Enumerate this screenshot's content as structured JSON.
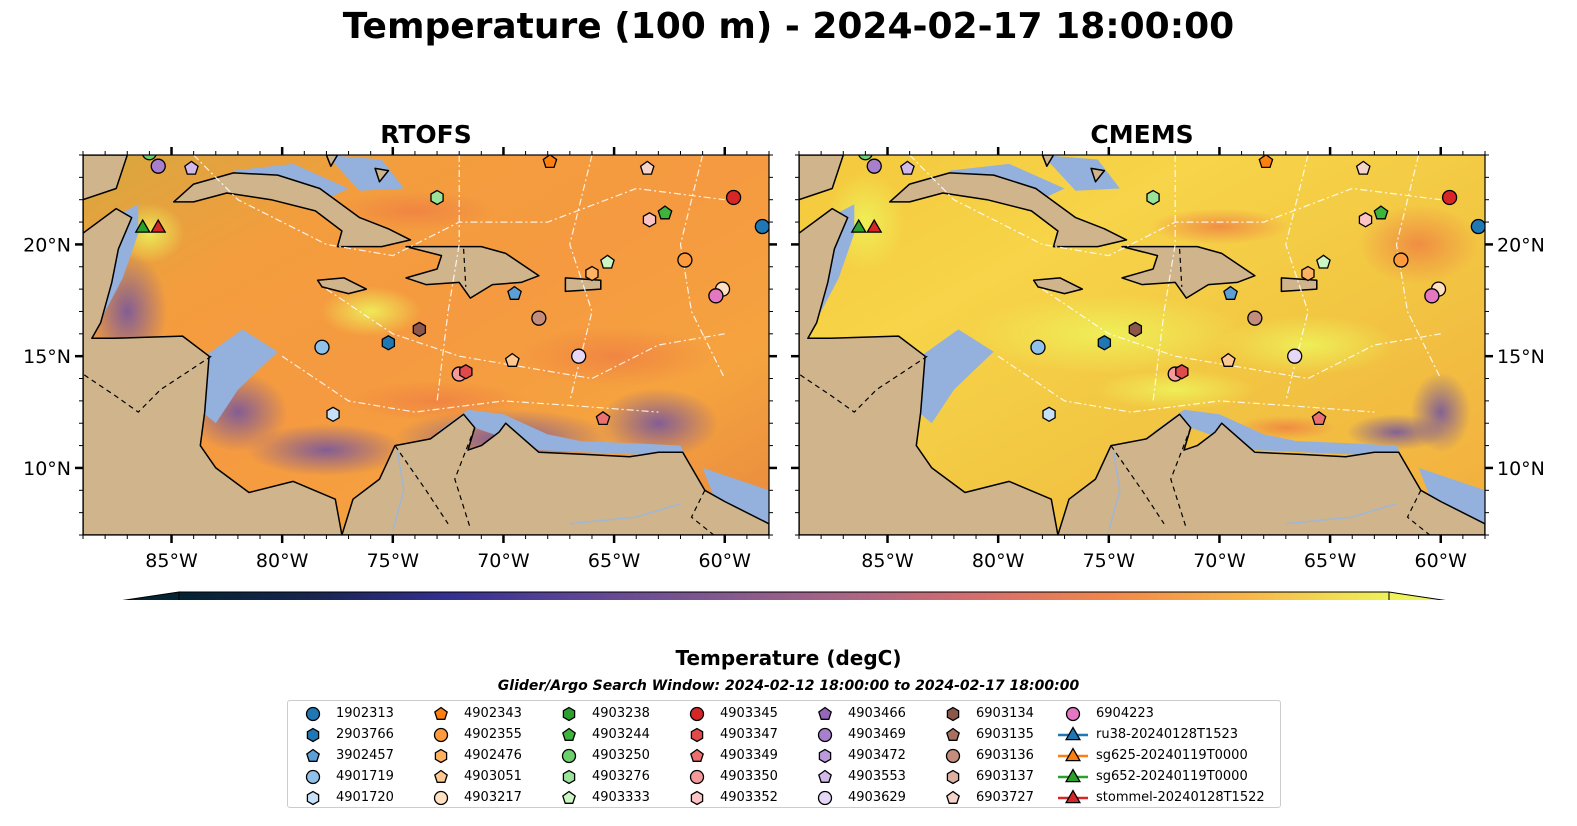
{
  "title": "Temperature (100 m) - 2024-02-17 18:00:00",
  "panels": [
    {
      "title": "RTOFS",
      "palette": "rtofs"
    },
    {
      "title": "CMEMS",
      "palette": "cmems"
    }
  ],
  "map": {
    "lon_range": [
      -89,
      -58
    ],
    "lat_range": [
      7,
      24
    ],
    "lon_ticks": [
      -85,
      -80,
      -75,
      -70,
      -65,
      -60
    ],
    "lon_tick_labels": [
      "85°W",
      "80°W",
      "75°W",
      "70°W",
      "65°W",
      "60°W"
    ],
    "lat_ticks": [
      10,
      15,
      20
    ],
    "lat_tick_labels": [
      "10°N",
      "15°N",
      "20°N"
    ],
    "land_color": "#d0b48c",
    "shelf_color": "#93b1dc"
  },
  "colorbar": {
    "min": 18,
    "max": 27,
    "ticks": [
      "18",
      "19",
      "20",
      "21",
      "22",
      "23",
      "24",
      "25",
      "26",
      "27"
    ],
    "label": "Temperature (degC)",
    "colormap": "thermal",
    "extend": "both"
  },
  "search_window": "Glider/Argo Search Window: 2024-02-12 18:00:00 to 2024-02-17 18:00:00",
  "legend": {
    "columns": [
      [
        {
          "label": "1902313",
          "marker": "circle",
          "color": "#1f77b4"
        },
        {
          "label": "2903766",
          "marker": "hexagon",
          "color": "#1f77b4"
        },
        {
          "label": "3902457",
          "marker": "pentagon",
          "color": "#5b9fd6"
        },
        {
          "label": "4901719",
          "marker": "circle",
          "color": "#8fc1ea"
        },
        {
          "label": "4901720",
          "marker": "hexagon",
          "color": "#c6e1f7"
        }
      ],
      [
        {
          "label": "4902343",
          "marker": "pentagon",
          "color": "#ff7f0e"
        },
        {
          "label": "4902355",
          "marker": "circle",
          "color": "#ff9a3d"
        },
        {
          "label": "4902476",
          "marker": "hexagon",
          "color": "#ffb061"
        },
        {
          "label": "4903051",
          "marker": "pentagon",
          "color": "#ffc890"
        },
        {
          "label": "4903217",
          "marker": "circle",
          "color": "#ffe0c0"
        }
      ],
      [
        {
          "label": "4903238",
          "marker": "hexagon",
          "color": "#2ca02c"
        },
        {
          "label": "4903244",
          "marker": "pentagon",
          "color": "#3db53d"
        },
        {
          "label": "4903250",
          "marker": "circle",
          "color": "#6bcf6b"
        },
        {
          "label": "4903276",
          "marker": "hexagon",
          "color": "#9be29b"
        },
        {
          "label": "4903333",
          "marker": "pentagon",
          "color": "#ccf5c4"
        }
      ],
      [
        {
          "label": "4903345",
          "marker": "circle",
          "color": "#d62728"
        },
        {
          "label": "4903347",
          "marker": "hexagon",
          "color": "#e04a4a"
        },
        {
          "label": "4903349",
          "marker": "pentagon",
          "color": "#ec7070"
        },
        {
          "label": "4903350",
          "marker": "circle",
          "color": "#f59a9a"
        },
        {
          "label": "4903352",
          "marker": "hexagon",
          "color": "#fcc4c4"
        }
      ],
      [
        {
          "label": "4903466",
          "marker": "pentagon",
          "color": "#9467bd"
        },
        {
          "label": "4903469",
          "marker": "circle",
          "color": "#a77fcc"
        },
        {
          "label": "4903472",
          "marker": "hexagon",
          "color": "#bb9bdb"
        },
        {
          "label": "4903553",
          "marker": "pentagon",
          "color": "#d1b9ea"
        },
        {
          "label": "4903629",
          "marker": "circle",
          "color": "#e7d7f7"
        }
      ],
      [
        {
          "label": "6903134",
          "marker": "hexagon",
          "color": "#8c564b"
        },
        {
          "label": "6903135",
          "marker": "pentagon",
          "color": "#a8705f"
        },
        {
          "label": "6903136",
          "marker": "circle",
          "color": "#c48d7b"
        },
        {
          "label": "6903137",
          "marker": "hexagon",
          "color": "#ddb0a1"
        },
        {
          "label": "6903727",
          "marker": "pentagon",
          "color": "#f5d5ca"
        }
      ],
      [
        {
          "label": "6904223",
          "marker": "circle",
          "color": "#e377c2"
        },
        {
          "label": "ru38-20240128T1523",
          "marker": "triangle-line",
          "color": "#1f77b4"
        },
        {
          "label": "sg625-20240119T0000",
          "marker": "triangle-line",
          "color": "#ff7f0e"
        },
        {
          "label": "sg652-20240119T0000",
          "marker": "triangle-line",
          "color": "#2ca02c"
        },
        {
          "label": "stommel-20240128T1522",
          "marker": "triangle-line",
          "color": "#d62728"
        }
      ]
    ]
  },
  "floats": [
    {
      "lon": -86.0,
      "lat": 24.1,
      "marker": "circle",
      "color": "#6bcf6b"
    },
    {
      "lon": -85.6,
      "lat": 23.5,
      "marker": "circle",
      "color": "#a77fcc"
    },
    {
      "lon": -84.1,
      "lat": 23.4,
      "marker": "pentagon",
      "color": "#d1b9ea"
    },
    {
      "lon": -73.0,
      "lat": 22.1,
      "marker": "hexagon",
      "color": "#9be29b"
    },
    {
      "lon": -67.9,
      "lat": 23.7,
      "marker": "pentagon",
      "color": "#ff7f0e"
    },
    {
      "lon": -63.5,
      "lat": 23.4,
      "marker": "pentagon",
      "color": "#f5d5ca"
    },
    {
      "lon": -59.6,
      "lat": 22.1,
      "marker": "circle",
      "color": "#d62728"
    },
    {
      "lon": -58.3,
      "lat": 20.8,
      "marker": "circle",
      "color": "#1f77b4"
    },
    {
      "lon": -62.7,
      "lat": 21.4,
      "marker": "pentagon",
      "color": "#3db53d"
    },
    {
      "lon": -63.4,
      "lat": 21.1,
      "marker": "hexagon",
      "color": "#fcc4c4"
    },
    {
      "lon": -61.8,
      "lat": 19.3,
      "marker": "circle",
      "color": "#ff9a3d"
    },
    {
      "lon": -65.3,
      "lat": 19.2,
      "marker": "pentagon",
      "color": "#ccf5c4"
    },
    {
      "lon": -66.0,
      "lat": 18.7,
      "marker": "hexagon",
      "color": "#ffb061"
    },
    {
      "lon": -60.1,
      "lat": 18.0,
      "marker": "circle",
      "color": "#ffe0c0"
    },
    {
      "lon": -60.4,
      "lat": 17.7,
      "marker": "circle",
      "color": "#e377c2"
    },
    {
      "lon": -69.5,
      "lat": 17.8,
      "marker": "pentagon",
      "color": "#5b9fd6"
    },
    {
      "lon": -68.4,
      "lat": 16.7,
      "marker": "circle",
      "color": "#c48d7b"
    },
    {
      "lon": -73.8,
      "lat": 16.2,
      "marker": "hexagon",
      "color": "#8c564b"
    },
    {
      "lon": -75.2,
      "lat": 15.6,
      "marker": "hexagon",
      "color": "#1f77b4"
    },
    {
      "lon": -78.2,
      "lat": 15.4,
      "marker": "circle",
      "color": "#8fc1ea"
    },
    {
      "lon": -69.6,
      "lat": 14.8,
      "marker": "pentagon",
      "color": "#ffc890"
    },
    {
      "lon": -66.6,
      "lat": 15.0,
      "marker": "circle",
      "color": "#e7d7f7"
    },
    {
      "lon": -72.0,
      "lat": 14.2,
      "marker": "circle",
      "color": "#f59a9a"
    },
    {
      "lon": -71.7,
      "lat": 14.3,
      "marker": "hexagon",
      "color": "#e04a4a"
    },
    {
      "lon": -77.7,
      "lat": 12.4,
      "marker": "hexagon",
      "color": "#c6e1f7"
    },
    {
      "lon": -65.5,
      "lat": 12.2,
      "marker": "pentagon",
      "color": "#ec7070"
    }
  ],
  "gliders": [
    {
      "lon": -86.3,
      "lat": 20.8,
      "color": "#2ca02c"
    },
    {
      "lon": -85.6,
      "lat": 20.8,
      "color": "#d62728"
    }
  ]
}
